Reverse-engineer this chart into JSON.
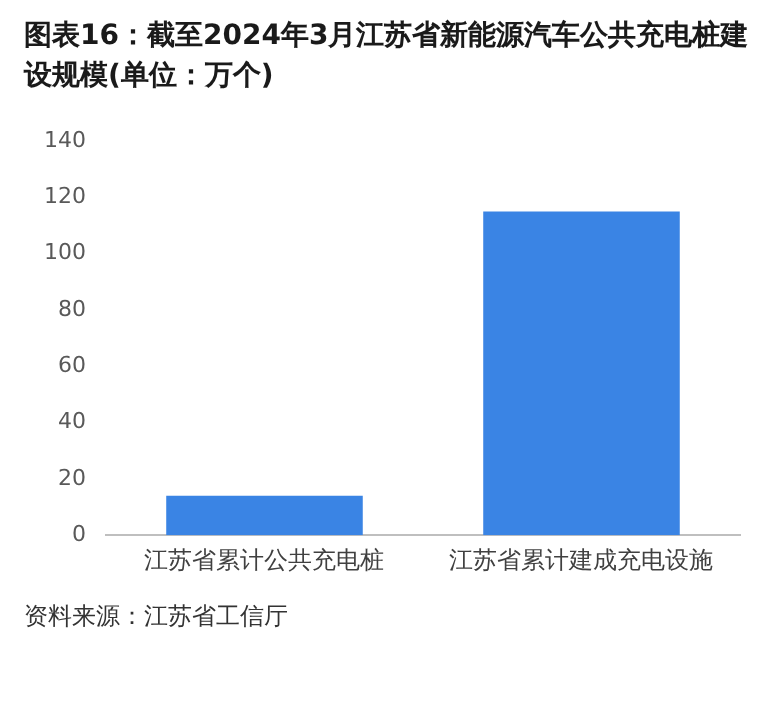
{
  "chart_data": {
    "type": "bar",
    "title": "图表16：截至2024年3月江苏省新能源汽车公共充电桩建设规模(单位：万个)",
    "categories": [
      "江苏省累计公共充电桩",
      "江苏省累计建成充电设施"
    ],
    "values": [
      14,
      115
    ],
    "color": "#3a84e4",
    "ylim": [
      0,
      140
    ],
    "yticks": [
      0,
      20,
      40,
      60,
      80,
      100,
      120,
      140
    ],
    "grid": false,
    "annotations": [
      "资料来源：江苏省工信厅"
    ]
  }
}
